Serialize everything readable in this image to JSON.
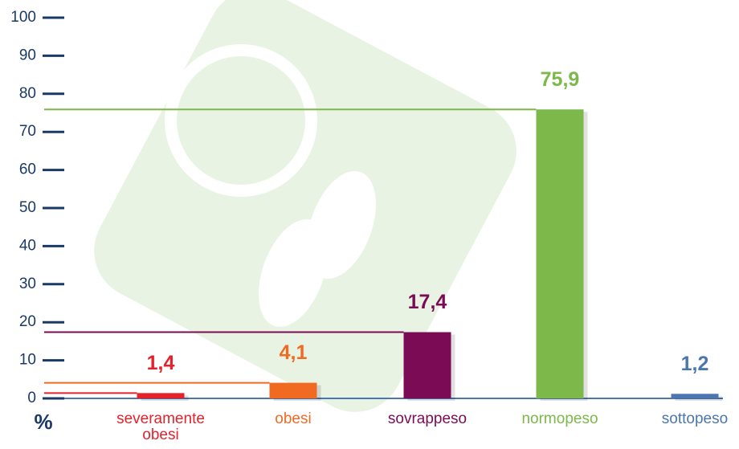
{
  "chart_data": {
    "type": "bar",
    "y_unit_label": "%",
    "categories": [
      "severamente obesi",
      "obesi",
      "sovrappeso",
      "normopeso",
      "sottopeso"
    ],
    "values": [
      1.4,
      4.1,
      17.4,
      75.9,
      1.2
    ],
    "value_labels": [
      "1,4",
      "4,1",
      "17,4",
      "75,9",
      "1,2"
    ],
    "colors": [
      "#e3222b",
      "#f06a22",
      "#7c0b56",
      "#7cb84a",
      "#4b76b1"
    ],
    "ylim": [
      0,
      100
    ],
    "yticks": [
      0,
      10,
      20,
      30,
      40,
      50,
      60,
      70,
      80,
      90,
      100
    ]
  }
}
